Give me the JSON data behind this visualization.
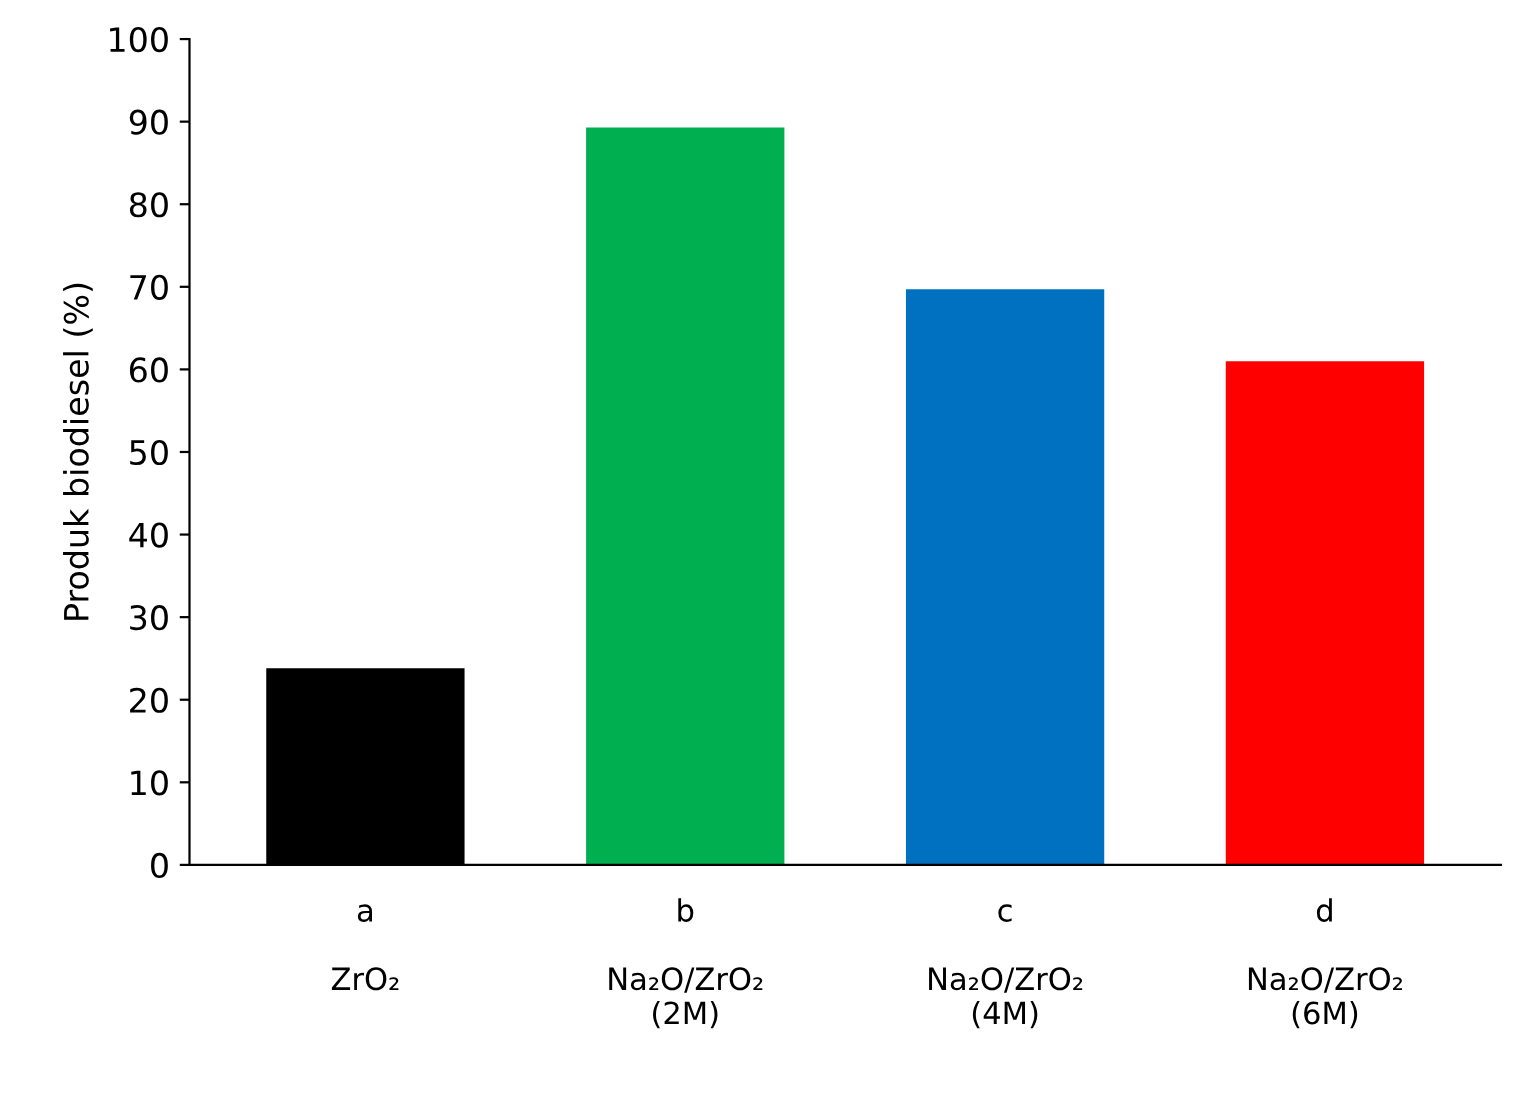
{
  "chart_data": {
    "type": "bar",
    "ylabel": "Produk biodiesel (%)",
    "categories": [
      "a\n\nZrO₂",
      "b\n\nNa₂O/ZrO₂\n(2M)",
      "c\n\nNa₂O/ZrO₂\n(4M)",
      "d\n\nNa₂O/ZrO₂\n(6M)"
    ],
    "values": [
      23.8,
      89.3,
      69.7,
      61.0
    ],
    "colors": [
      "#000000",
      "#00b050",
      "#0070c0",
      "#ff0000"
    ],
    "ylim": [
      0,
      100
    ],
    "yticks": [
      0,
      10,
      20,
      30,
      40,
      50,
      60,
      70,
      80,
      90,
      100
    ],
    "grid": false,
    "legend": false
  }
}
